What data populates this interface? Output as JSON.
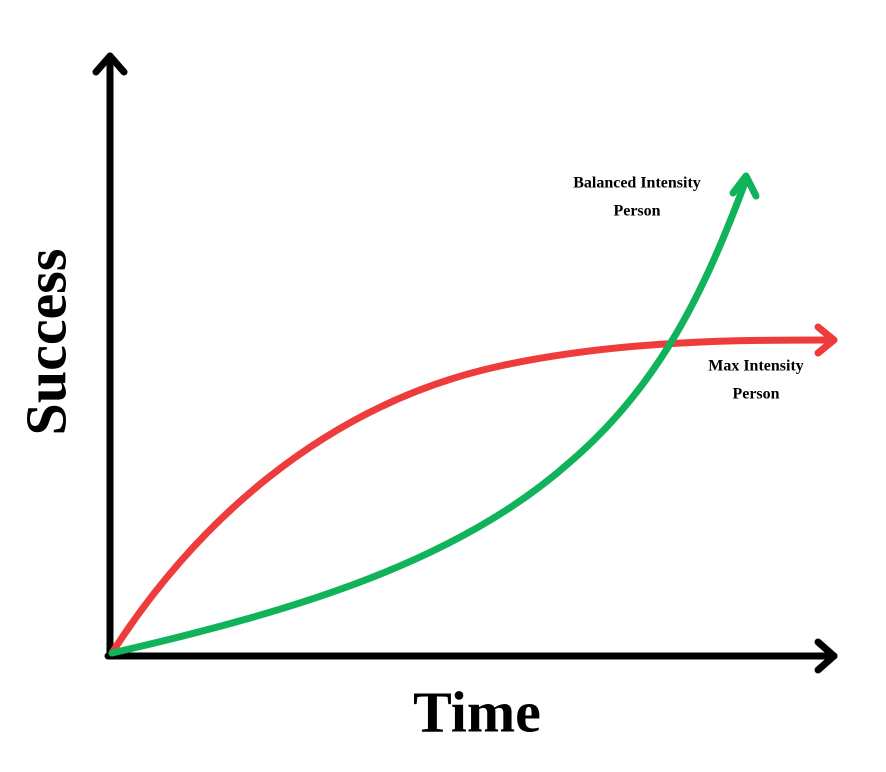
{
  "axes": {
    "x_label": "Time",
    "y_label": "Success"
  },
  "curves": [
    {
      "label_lines": [
        "Balanced Intensity",
        "Person"
      ]
    },
    {
      "label_lines": [
        "Max Intensity",
        "Person"
      ]
    }
  ]
}
